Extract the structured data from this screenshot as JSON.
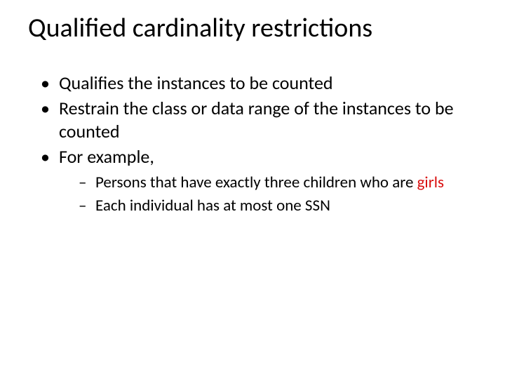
{
  "title": "Qualified cardinality restrictions",
  "bullets": {
    "b1": "Qualifies the instances to be counted",
    "b2": "Restrain the class or data range of the instances to be counted",
    "b3": "For example,",
    "sub1_pre": "Persons that have exactly three children who are ",
    "sub1_hl": "girls",
    "sub2": "Each individual has at most one SSN"
  },
  "colors": {
    "text": "#000000",
    "highlight": "#d90e0e",
    "background": "#ffffff"
  },
  "typography": {
    "title_fontsize": 38,
    "body_fontsize": 26,
    "sub_fontsize": 23,
    "font_family": "Calibri"
  }
}
